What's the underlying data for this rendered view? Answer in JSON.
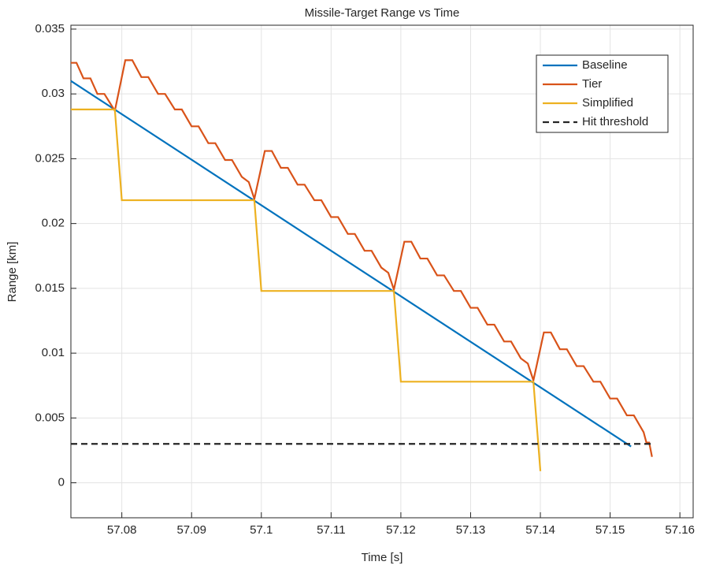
{
  "chart_data": {
    "type": "line",
    "title": "Missile-Target Range vs Time",
    "x_label": "Time [s]",
    "y_label": "Range [km]",
    "xlim": [
      57.0727,
      57.1619
    ],
    "ylim": [
      -0.0027,
      0.0353
    ],
    "xticks": [
      57.08,
      57.09,
      57.1,
      57.11,
      57.12,
      57.13,
      57.14,
      57.15,
      57.16
    ],
    "yticks": [
      0,
      0.005,
      0.01,
      0.015,
      0.02,
      0.025,
      0.03,
      0.035
    ],
    "grid": true,
    "legend": "upper right",
    "series": [
      {
        "name": "Baseline",
        "color": "#0072BD",
        "line_style": "-",
        "x": [
          57.0727,
          57.153
        ],
        "values": [
          0.031,
          0.0028
        ]
      },
      {
        "name": "Tier",
        "color": "#D95319",
        "line_style": "-",
        "x": [
          57.0727,
          57.0735,
          57.0745,
          57.0755,
          57.0765,
          57.0775,
          57.079,
          57.0805,
          57.0815,
          57.0828,
          57.0838,
          57.0852,
          57.0862,
          57.0876,
          57.0886,
          57.09,
          57.091,
          57.0924,
          57.0934,
          57.0948,
          57.0958,
          57.0972,
          57.0982,
          57.099,
          57.1005,
          57.1015,
          57.1028,
          57.1038,
          57.1052,
          57.1062,
          57.1076,
          57.1086,
          57.11,
          57.111,
          57.1124,
          57.1134,
          57.1148,
          57.1158,
          57.1172,
          57.1182,
          57.119,
          57.1205,
          57.1215,
          57.1228,
          57.1238,
          57.1252,
          57.1262,
          57.1276,
          57.1286,
          57.13,
          57.131,
          57.1324,
          57.1334,
          57.1348,
          57.1358,
          57.1372,
          57.1382,
          57.139,
          57.1405,
          57.1415,
          57.1428,
          57.1438,
          57.1452,
          57.1462,
          57.1476,
          57.1486,
          57.15,
          57.151,
          57.1524,
          57.1534,
          57.1548,
          57.1552,
          57.1556,
          57.156
        ],
        "values": [
          0.0324,
          0.0324,
          0.0312,
          0.0312,
          0.03,
          0.03,
          0.0287,
          0.0326,
          0.0326,
          0.0313,
          0.0313,
          0.03,
          0.03,
          0.0288,
          0.0288,
          0.0275,
          0.0275,
          0.0262,
          0.0262,
          0.0249,
          0.0249,
          0.0236,
          0.0232,
          0.0219,
          0.0256,
          0.0256,
          0.0243,
          0.0243,
          0.023,
          0.023,
          0.0218,
          0.0218,
          0.0205,
          0.0205,
          0.0192,
          0.0192,
          0.0179,
          0.0179,
          0.0166,
          0.0162,
          0.0149,
          0.0186,
          0.0186,
          0.0173,
          0.0173,
          0.016,
          0.016,
          0.0148,
          0.0148,
          0.0135,
          0.0135,
          0.0122,
          0.0122,
          0.0109,
          0.0109,
          0.0096,
          0.0092,
          0.0079,
          0.0116,
          0.0116,
          0.0103,
          0.0103,
          0.009,
          0.009,
          0.0078,
          0.0078,
          0.0065,
          0.0065,
          0.0052,
          0.0052,
          0.0039,
          0.0031,
          0.0031,
          0.002
        ]
      },
      {
        "name": "Simplified",
        "color": "#EDB120",
        "line_style": "-",
        "x": [
          57.0727,
          57.079,
          57.08,
          57.099,
          57.1,
          57.119,
          57.12,
          57.139,
          57.14
        ],
        "values": [
          0.0288,
          0.0288,
          0.0218,
          0.0218,
          0.0148,
          0.0148,
          0.0078,
          0.0078,
          0.0009
        ]
      },
      {
        "name": "Hit threshold",
        "color": "#262626",
        "line_style": "--",
        "x": [
          57.0727,
          57.156
        ],
        "values": [
          0.003,
          0.003
        ]
      }
    ]
  }
}
